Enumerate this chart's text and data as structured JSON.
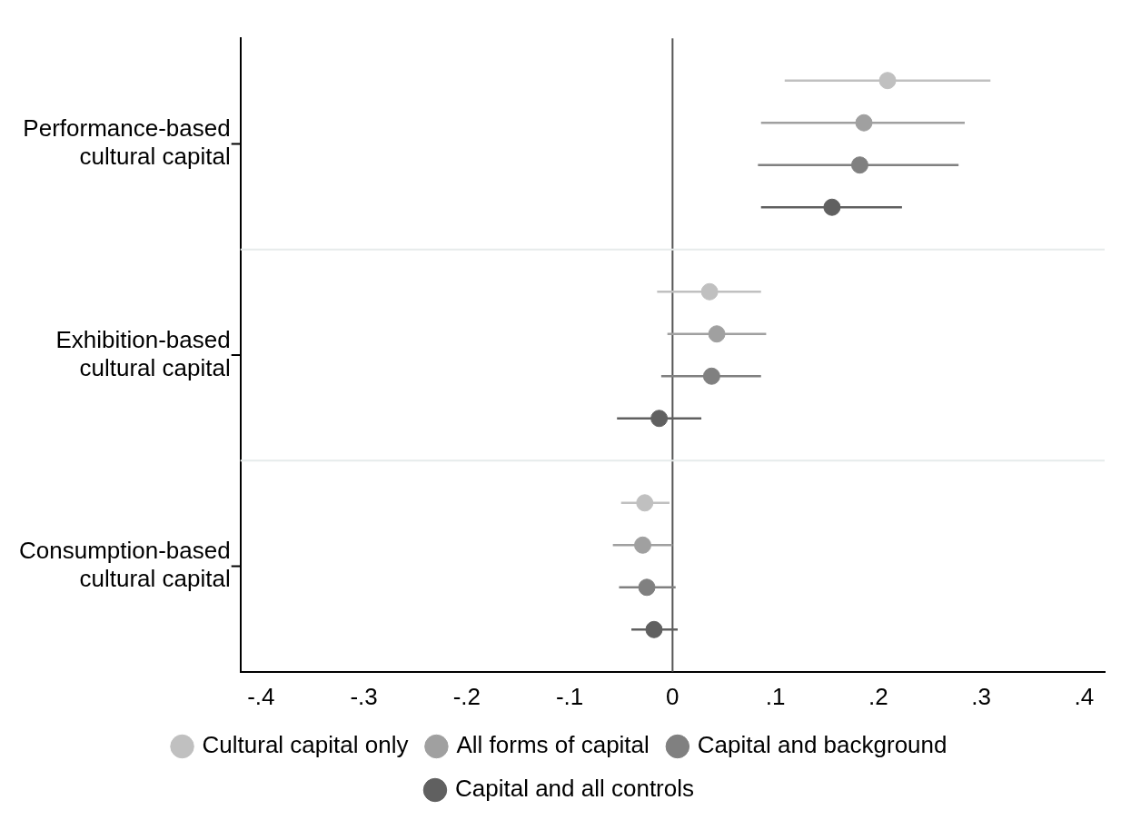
{
  "chart_data": {
    "type": "scatter",
    "orientation": "horizontal",
    "categories": [
      "Performance-based cultural capital",
      "Exhibition-based cultural capital",
      "Consumption-based cultural capital"
    ],
    "series": [
      {
        "name": "Cultural capital only",
        "color": "#c0c0c0",
        "values": [
          0.209,
          0.036,
          -0.027
        ],
        "errors": [
          [
            0.109,
            0.309
          ],
          [
            -0.015,
            0.086
          ],
          [
            -0.05,
            -0.003
          ]
        ]
      },
      {
        "name": "All forms of capital",
        "color": "#a0a0a0",
        "values": [
          0.186,
          0.043,
          -0.029
        ],
        "errors": [
          [
            0.086,
            0.284
          ],
          [
            -0.005,
            0.091
          ],
          [
            -0.058,
            0.0
          ]
        ]
      },
      {
        "name": "Capital and background",
        "color": "#808080",
        "values": [
          0.182,
          0.038,
          -0.025
        ],
        "errors": [
          [
            0.083,
            0.278
          ],
          [
            -0.011,
            0.086
          ],
          [
            -0.052,
            0.003
          ]
        ]
      },
      {
        "name": "Capital and all controls",
        "color": "#606060",
        "values": [
          0.155,
          -0.013,
          -0.018
        ],
        "errors": [
          [
            0.086,
            0.223
          ],
          [
            -0.054,
            0.028
          ],
          [
            -0.04,
            0.005
          ]
        ]
      }
    ],
    "xlim": [
      -0.42,
      0.42
    ],
    "xticks": [
      {
        "value": -0.4,
        "label": "-.4"
      },
      {
        "value": -0.3,
        "label": "-.3"
      },
      {
        "value": -0.2,
        "label": "-.2"
      },
      {
        "value": -0.1,
        "label": "-.1"
      },
      0,
      {
        "value": 0.1,
        "label": ".1"
      },
      {
        "value": 0.2,
        "label": ".2"
      },
      {
        "value": 0.3,
        "label": ".3"
      },
      {
        "value": 0.4,
        "label": ".4"
      }
    ],
    "ref_lines": [
      {
        "axis": "x",
        "value": 0,
        "color": "#555555"
      }
    ],
    "grid": "y",
    "legend": "bottom",
    "marker": "circle"
  }
}
